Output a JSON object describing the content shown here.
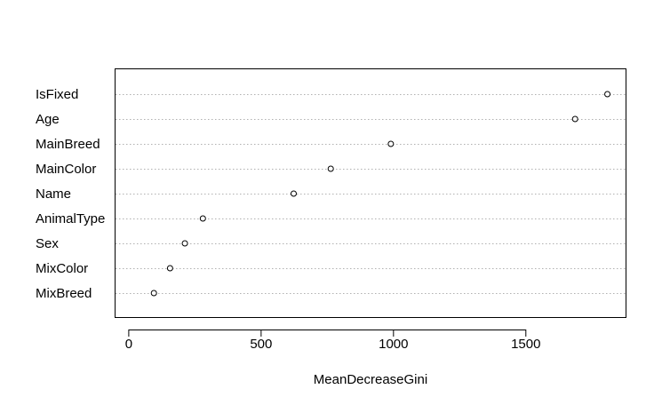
{
  "chart_data": {
    "type": "scatter",
    "style": "dotchart",
    "title": "",
    "xlabel": "MeanDecreaseGini",
    "ylabel": "",
    "xlim": [
      -50,
      1880
    ],
    "xticks": [
      0,
      500,
      1000,
      1500
    ],
    "grid": "horizontal-dotted",
    "categories": [
      "IsFixed",
      "Age",
      "MainBreed",
      "MainColor",
      "Name",
      "AnimalType",
      "Sex",
      "MixColor",
      "MixBreed"
    ],
    "values": [
      1808,
      1686,
      990,
      763,
      623,
      280,
      212,
      156,
      95
    ]
  }
}
